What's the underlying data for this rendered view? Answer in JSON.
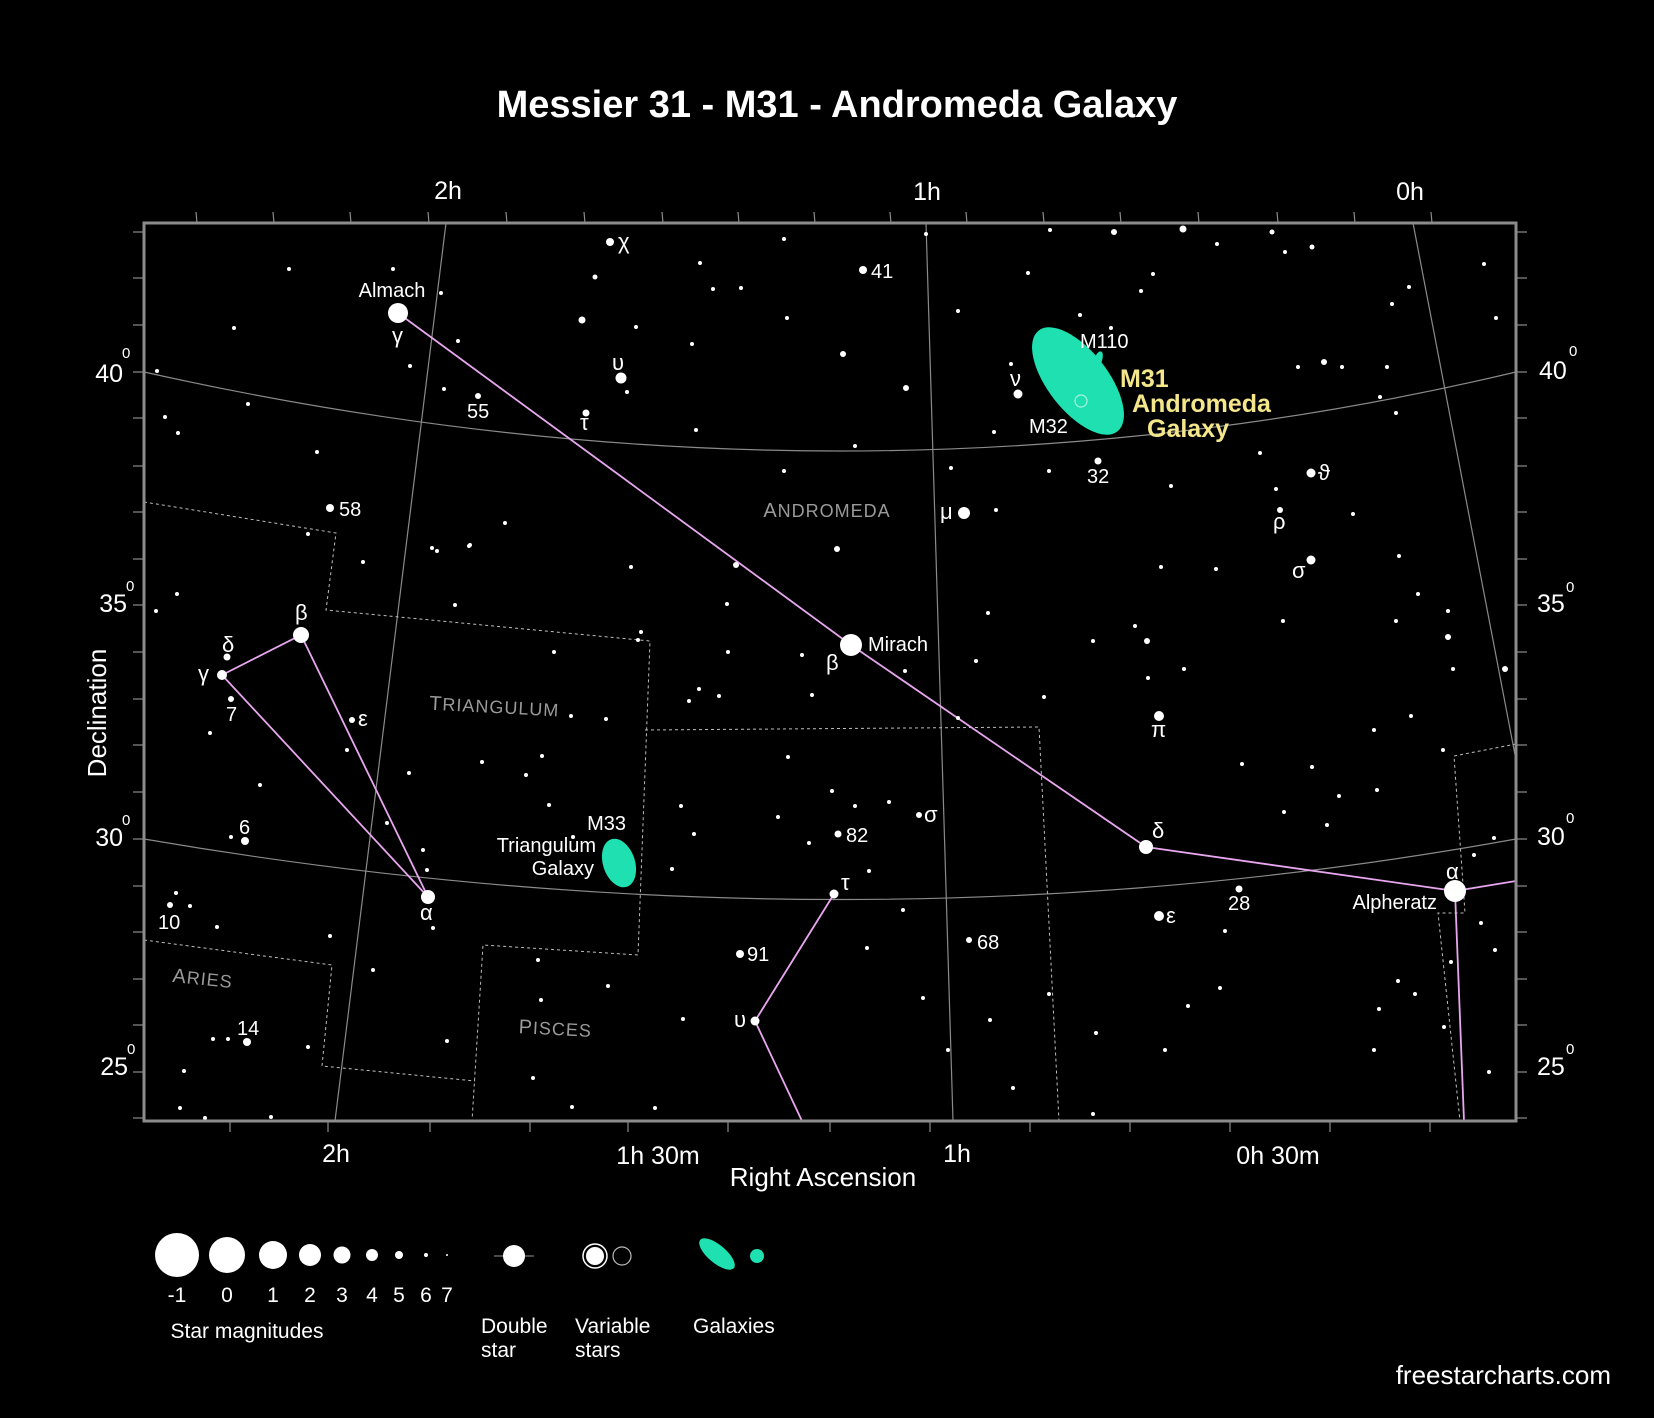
{
  "title": "Messier 31 - M31 - Andromeda Galaxy",
  "axes": {
    "x_title": "Right Ascension",
    "y_title": "Declination",
    "ra_bottom": [
      "2h",
      "1h 30m",
      "1h",
      "0h 30m"
    ],
    "ra_top": [
      "2h",
      "1h",
      "0h"
    ],
    "dec_left": [
      "40",
      "35",
      "30",
      "25"
    ],
    "dec_right": [
      "40",
      "35",
      "30",
      "25"
    ],
    "degree_mark": "0"
  },
  "constellations": [
    "Andromeda",
    "Triangulum",
    "Pisces",
    "Aries"
  ],
  "named_stars": {
    "almach": "Almach",
    "mirach": "Mirach",
    "alpheratz": "Alpheratz"
  },
  "star_labels": [
    "χ",
    "41",
    "γ",
    "υ",
    "55",
    "τ",
    "ν",
    "32",
    "ϑ",
    "ρ",
    "σ",
    "58",
    "μ",
    "β",
    "δ",
    "γ",
    "7",
    "ε",
    "β",
    "π",
    "6",
    "σ",
    "82",
    "δ",
    "α",
    "10",
    "τ",
    "28",
    "α",
    "ε",
    "91",
    "68",
    "14",
    "υ"
  ],
  "objects": {
    "m110": "M110",
    "m32": "M32",
    "m31_line1": "M31",
    "m31_line2": "Andromeda",
    "m31_line3": "Galaxy",
    "m33": "M33",
    "tri_line1": "Triangulum",
    "tri_line2": "Galaxy"
  },
  "colors": {
    "background": "#000000",
    "grid": "#8a8a8a",
    "frame": "#8c8c8c",
    "stick": "#e8a6ef",
    "galaxy": "#1fe0b0",
    "highlight": "#f4e68a"
  },
  "legend": {
    "magnitudes": [
      "-1",
      "0",
      "1",
      "2",
      "3",
      "4",
      "5",
      "6",
      "7"
    ],
    "magnitudes_label": "Star magnitudes",
    "double_line1": "Double",
    "double_line2": "star",
    "variable_line1": "Variable",
    "variable_line2": "stars",
    "galaxies_label": "Galaxies"
  },
  "credit": "freestarcharts.com"
}
